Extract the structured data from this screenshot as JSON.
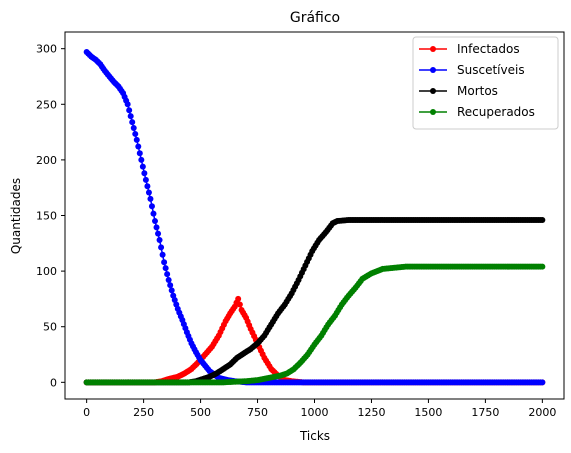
{
  "chart_data": {
    "type": "line",
    "title": "Gráfico",
    "xlabel": "Ticks",
    "ylabel": "Quantidades",
    "xlim": [
      -95,
      2095
    ],
    "ylim": [
      -15,
      315
    ],
    "xticks": [
      0,
      250,
      500,
      750,
      1000,
      1250,
      1500,
      1750,
      2000
    ],
    "yticks": [
      0,
      50,
      100,
      150,
      200,
      250,
      300
    ],
    "legend_position": "top-right",
    "marker": "circle",
    "series": [
      {
        "name": "Infectados",
        "color": "#ff0000",
        "points": [
          [
            0,
            0
          ],
          [
            100,
            0
          ],
          [
            200,
            0
          ],
          [
            300,
            0
          ],
          [
            330,
            1
          ],
          [
            360,
            3
          ],
          [
            400,
            5
          ],
          [
            430,
            8
          ],
          [
            460,
            12
          ],
          [
            490,
            18
          ],
          [
            520,
            25
          ],
          [
            550,
            32
          ],
          [
            580,
            42
          ],
          [
            610,
            55
          ],
          [
            630,
            62
          ],
          [
            650,
            68
          ],
          [
            665,
            75
          ],
          [
            680,
            65
          ],
          [
            700,
            58
          ],
          [
            720,
            48
          ],
          [
            750,
            35
          ],
          [
            780,
            22
          ],
          [
            810,
            12
          ],
          [
            840,
            6
          ],
          [
            870,
            2
          ],
          [
            900,
            1
          ],
          [
            950,
            0
          ],
          [
            1000,
            0
          ],
          [
            1250,
            0
          ],
          [
            1500,
            0
          ],
          [
            1750,
            0
          ],
          [
            2000,
            0
          ]
        ]
      },
      {
        "name": "Suscetíveis",
        "color": "#0000ff",
        "points": [
          [
            0,
            297
          ],
          [
            20,
            293
          ],
          [
            40,
            290
          ],
          [
            60,
            286
          ],
          [
            80,
            280
          ],
          [
            100,
            275
          ],
          [
            120,
            270
          ],
          [
            140,
            266
          ],
          [
            160,
            260
          ],
          [
            180,
            250
          ],
          [
            200,
            234
          ],
          [
            220,
            218
          ],
          [
            240,
            200
          ],
          [
            260,
            182
          ],
          [
            280,
            165
          ],
          [
            300,
            145
          ],
          [
            320,
            128
          ],
          [
            340,
            108
          ],
          [
            360,
            92
          ],
          [
            380,
            78
          ],
          [
            400,
            66
          ],
          [
            420,
            56
          ],
          [
            440,
            45
          ],
          [
            460,
            35
          ],
          [
            480,
            27
          ],
          [
            500,
            20
          ],
          [
            520,
            15
          ],
          [
            540,
            10
          ],
          [
            560,
            7
          ],
          [
            580,
            4
          ],
          [
            600,
            3
          ],
          [
            620,
            2
          ],
          [
            650,
            1
          ],
          [
            700,
            0
          ],
          [
            800,
            0
          ],
          [
            1000,
            0
          ],
          [
            1250,
            0
          ],
          [
            1500,
            0
          ],
          [
            1750,
            0
          ],
          [
            2000,
            0
          ]
        ]
      },
      {
        "name": "Mortos",
        "color": "#000000",
        "points": [
          [
            0,
            0
          ],
          [
            250,
            0
          ],
          [
            450,
            0
          ],
          [
            480,
            1
          ],
          [
            510,
            3
          ],
          [
            540,
            5
          ],
          [
            570,
            8
          ],
          [
            600,
            12
          ],
          [
            630,
            16
          ],
          [
            660,
            22
          ],
          [
            690,
            26
          ],
          [
            720,
            30
          ],
          [
            750,
            35
          ],
          [
            780,
            42
          ],
          [
            810,
            52
          ],
          [
            840,
            62
          ],
          [
            870,
            70
          ],
          [
            900,
            80
          ],
          [
            930,
            92
          ],
          [
            960,
            105
          ],
          [
            990,
            118
          ],
          [
            1020,
            128
          ],
          [
            1050,
            135
          ],
          [
            1080,
            143
          ],
          [
            1100,
            145
          ],
          [
            1150,
            146
          ],
          [
            1250,
            146
          ],
          [
            1500,
            146
          ],
          [
            1750,
            146
          ],
          [
            2000,
            146
          ]
        ]
      },
      {
        "name": "Recuperados",
        "color": "#008000",
        "points": [
          [
            0,
            0
          ],
          [
            250,
            0
          ],
          [
            500,
            0
          ],
          [
            600,
            0
          ],
          [
            700,
            1
          ],
          [
            750,
            2
          ],
          [
            800,
            4
          ],
          [
            850,
            6
          ],
          [
            880,
            8
          ],
          [
            910,
            12
          ],
          [
            940,
            18
          ],
          [
            970,
            25
          ],
          [
            1000,
            34
          ],
          [
            1030,
            42
          ],
          [
            1060,
            52
          ],
          [
            1090,
            60
          ],
          [
            1120,
            70
          ],
          [
            1150,
            78
          ],
          [
            1180,
            85
          ],
          [
            1210,
            93
          ],
          [
            1250,
            98
          ],
          [
            1300,
            102
          ],
          [
            1350,
            103
          ],
          [
            1400,
            104
          ],
          [
            1500,
            104
          ],
          [
            1750,
            104
          ],
          [
            2000,
            104
          ]
        ]
      }
    ]
  }
}
